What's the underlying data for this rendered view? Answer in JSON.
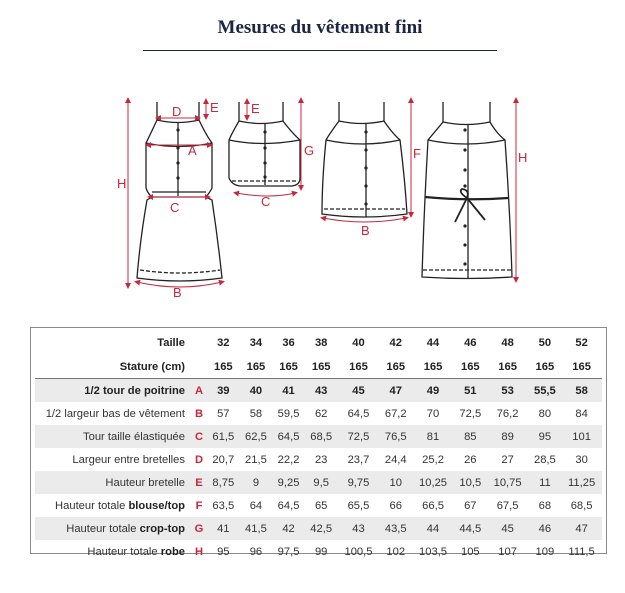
{
  "title": "Mesures du vêtement fini",
  "illustration_labels": {
    "dress1": [
      "D",
      "E",
      "A",
      "C",
      "H",
      "B"
    ],
    "croptop": [
      "E",
      "G",
      "C"
    ],
    "top": [
      "F",
      "B"
    ],
    "dress2": [
      "H"
    ]
  },
  "colors": {
    "title": "#1c2541",
    "accent": "#c8283c",
    "row_shade": "#ebebeb"
  },
  "table": {
    "header_rows": [
      {
        "label": "Taille",
        "values": [
          "32",
          "34",
          "36",
          "38",
          "40",
          "42",
          "44",
          "46",
          "48",
          "50",
          "52"
        ]
      },
      {
        "label": "Stature (cm)",
        "values": [
          "165",
          "165",
          "165",
          "165",
          "165",
          "165",
          "165",
          "165",
          "165",
          "165",
          "165"
        ]
      }
    ],
    "rows": [
      {
        "label": "1/2 tour de poitrine",
        "label_bold": "",
        "letter": "A",
        "values": [
          "39",
          "40",
          "41",
          "43",
          "45",
          "47",
          "49",
          "51",
          "53",
          "55,5",
          "58"
        ]
      },
      {
        "label": "1/2 largeur bas de vêtement",
        "label_bold": "",
        "letter": "B",
        "values": [
          "57",
          "58",
          "59,5",
          "62",
          "64,5",
          "67,2",
          "70",
          "72,5",
          "76,2",
          "80",
          "84"
        ]
      },
      {
        "label": "Tour taille élastiquée",
        "label_bold": "",
        "letter": "C",
        "values": [
          "61,5",
          "62,5",
          "64,5",
          "68,5",
          "72,5",
          "76,5",
          "81",
          "85",
          "89",
          "95",
          "101"
        ]
      },
      {
        "label": "Largeur entre bretelles",
        "label_bold": "",
        "letter": "D",
        "values": [
          "20,7",
          "21,5",
          "22,2",
          "23",
          "23,7",
          "24,4",
          "25,2",
          "26",
          "27",
          "28,5",
          "30"
        ]
      },
      {
        "label": "Hauteur bretelle",
        "label_bold": "",
        "letter": "E",
        "values": [
          "8,75",
          "9",
          "9,25",
          "9,5",
          "9,75",
          "10",
          "10,25",
          "10,5",
          "10,75",
          "11",
          "11,25"
        ]
      },
      {
        "label": "Hauteur totale ",
        "label_bold": "blouse/top",
        "letter": "F",
        "values": [
          "63,5",
          "64",
          "64,5",
          "65",
          "65,5",
          "66",
          "66,5",
          "67",
          "67,5",
          "68",
          "68,5"
        ]
      },
      {
        "label": "Hauteur totale ",
        "label_bold": "crop-top",
        "letter": "G",
        "values": [
          "41",
          "41,5",
          "42",
          "42,5",
          "43",
          "43,5",
          "44",
          "44,5",
          "45",
          "46",
          "47"
        ]
      },
      {
        "label": "Hauteur totale ",
        "label_bold": "robe",
        "letter": "H",
        "values": [
          "95",
          "96",
          "97,5",
          "99",
          "100,5",
          "102",
          "103,5",
          "105",
          "107",
          "109",
          "111,5"
        ]
      }
    ]
  }
}
